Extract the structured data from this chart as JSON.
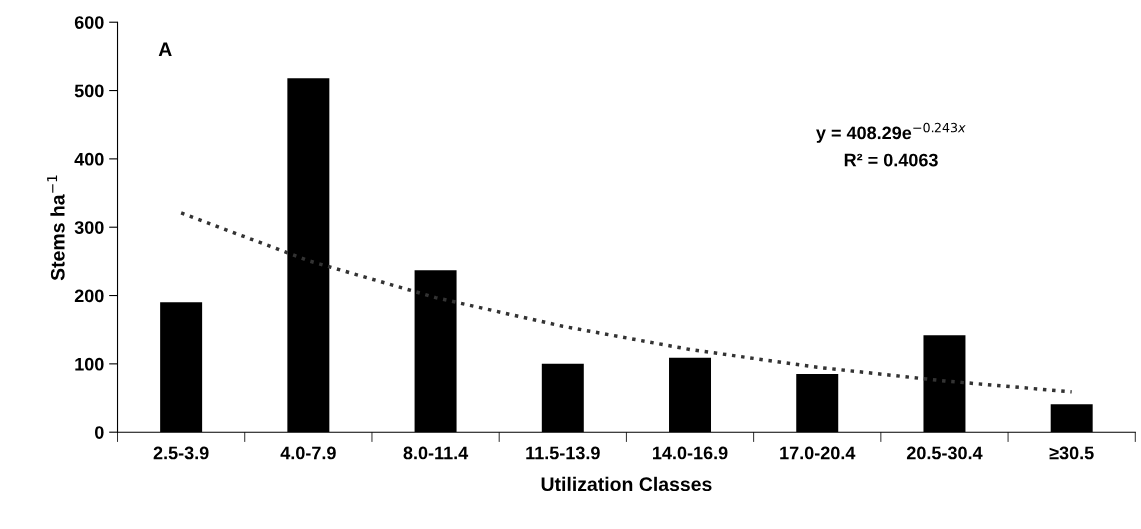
{
  "chart_data": {
    "type": "bar",
    "xlabel": "Utilization Classes",
    "ylabel": "Stems ha$^{−1}$",
    "categories": [
      "2.5-3.9",
      "4.0-7.9",
      "8.0-11.4",
      "11.5-13.9",
      "14.0-16.9",
      "17.0-20.4",
      "20.5-30.4",
      "≥30.5"
    ],
    "series": [
      {
        "color": "#000000",
        "values": [
          190,
          518,
          237,
          100,
          109,
          85,
          142,
          41
        ]
      },
      {
        "type": "line",
        "color": "#333333",
        "line_style": "dotted",
        "values": [
          321,
          251,
          197,
          155,
          121,
          95,
          75,
          59
        ]
      }
    ],
    "ylim": [
      0,
      600
    ],
    "yticks": [
      0,
      100,
      200,
      300,
      400,
      500,
      600
    ],
    "grid": false,
    "legend": false,
    "annotations": [
      "A",
      "y = 408.29e$^{−0.243x}$",
      "R² = 0.4063"
    ]
  }
}
